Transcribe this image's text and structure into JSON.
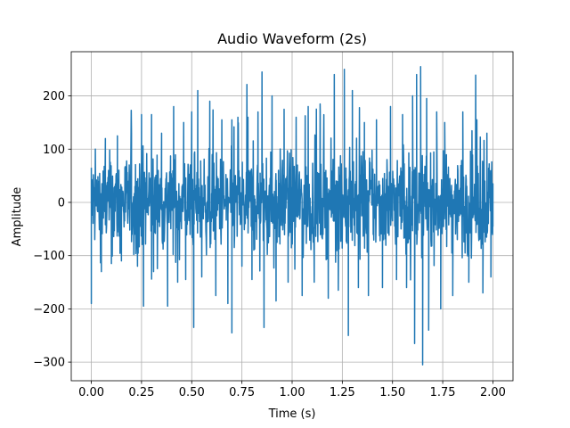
{
  "chart_data": {
    "type": "line",
    "title": "Audio Waveform (2s)",
    "xlabel": "Time (s)",
    "ylabel": "Amplitude",
    "xlim": [
      -0.1,
      2.1
    ],
    "ylim": [
      -335,
      283
    ],
    "xticks": [
      0.0,
      0.25,
      0.5,
      0.75,
      1.0,
      1.25,
      1.5,
      1.75,
      2.0
    ],
    "xtick_labels": [
      "0.00",
      "0.25",
      "0.50",
      "0.75",
      "1.00",
      "1.25",
      "1.50",
      "1.75",
      "2.00"
    ],
    "yticks": [
      -300,
      -200,
      -100,
      0,
      100,
      200
    ],
    "ytick_labels": [
      "−300",
      "−200",
      "−100",
      "0",
      "100",
      "200"
    ],
    "grid": true,
    "series": [
      {
        "color": "#1f77b4",
        "x_start": 0.0,
        "x_end": 2.0,
        "typical_envelope": [
          -60,
          60
        ],
        "peaks": [
          {
            "x": 0.0,
            "y": 65
          },
          {
            "x": 0.0,
            "y": -190
          },
          {
            "x": 0.02,
            "y": 100
          },
          {
            "x": 0.05,
            "y": -130
          },
          {
            "x": 0.07,
            "y": 120
          },
          {
            "x": 0.1,
            "y": -115
          },
          {
            "x": 0.13,
            "y": 125
          },
          {
            "x": 0.15,
            "y": -110
          },
          {
            "x": 0.2,
            "y": 130
          },
          {
            "x": 0.23,
            "y": -120
          },
          {
            "x": 0.25,
            "y": 165
          },
          {
            "x": 0.26,
            "y": -195
          },
          {
            "x": 0.3,
            "y": 165
          },
          {
            "x": 0.31,
            "y": -130
          },
          {
            "x": 0.35,
            "y": 130
          },
          {
            "x": 0.38,
            "y": -195
          },
          {
            "x": 0.41,
            "y": 180
          },
          {
            "x": 0.43,
            "y": -150
          },
          {
            "x": 0.46,
            "y": 150
          },
          {
            "x": 0.47,
            "y": -145
          },
          {
            "x": 0.5,
            "y": 170
          },
          {
            "x": 0.51,
            "y": -235
          },
          {
            "x": 0.53,
            "y": 210
          },
          {
            "x": 0.55,
            "y": -140
          },
          {
            "x": 0.59,
            "y": 190
          },
          {
            "x": 0.62,
            "y": -175
          },
          {
            "x": 0.65,
            "y": 155
          },
          {
            "x": 0.68,
            "y": -190
          },
          {
            "x": 0.7,
            "y": 155
          },
          {
            "x": 0.7,
            "y": -245
          },
          {
            "x": 0.73,
            "y": 160
          },
          {
            "x": 0.75,
            "y": -120
          },
          {
            "x": 0.78,
            "y": 160
          },
          {
            "x": 0.8,
            "y": -145
          },
          {
            "x": 0.83,
            "y": 170
          },
          {
            "x": 0.85,
            "y": 245
          },
          {
            "x": 0.86,
            "y": -235
          },
          {
            "x": 0.9,
            "y": 200
          },
          {
            "x": 0.92,
            "y": -185
          },
          {
            "x": 0.96,
            "y": 175
          },
          {
            "x": 0.98,
            "y": -150
          },
          {
            "x": 1.02,
            "y": 160
          },
          {
            "x": 1.05,
            "y": -175
          },
          {
            "x": 1.08,
            "y": 180
          },
          {
            "x": 1.11,
            "y": -150
          },
          {
            "x": 1.14,
            "y": 170
          },
          {
            "x": 1.18,
            "y": -180
          },
          {
            "x": 1.21,
            "y": 240
          },
          {
            "x": 1.23,
            "y": -165
          },
          {
            "x": 1.26,
            "y": 250
          },
          {
            "x": 1.28,
            "y": -250
          },
          {
            "x": 1.3,
            "y": 210
          },
          {
            "x": 1.33,
            "y": -160
          },
          {
            "x": 1.36,
            "y": 150
          },
          {
            "x": 1.38,
            "y": -175
          },
          {
            "x": 1.42,
            "y": 155
          },
          {
            "x": 1.45,
            "y": -160
          },
          {
            "x": 1.49,
            "y": 180
          },
          {
            "x": 1.52,
            "y": -145
          },
          {
            "x": 1.55,
            "y": 165
          },
          {
            "x": 1.57,
            "y": -160
          },
          {
            "x": 1.6,
            "y": 200
          },
          {
            "x": 1.61,
            "y": -265
          },
          {
            "x": 1.62,
            "y": 240
          },
          {
            "x": 1.64,
            "y": 255
          },
          {
            "x": 1.65,
            "y": -305
          },
          {
            "x": 1.67,
            "y": 195
          },
          {
            "x": 1.68,
            "y": -240
          },
          {
            "x": 1.72,
            "y": 170
          },
          {
            "x": 1.74,
            "y": -200
          },
          {
            "x": 1.76,
            "y": 150
          },
          {
            "x": 1.8,
            "y": -175
          },
          {
            "x": 1.85,
            "y": 170
          },
          {
            "x": 1.88,
            "y": -150
          },
          {
            "x": 1.92,
            "y": 155
          },
          {
            "x": 1.95,
            "y": -170
          },
          {
            "x": 1.97,
            "y": 130
          },
          {
            "x": 1.99,
            "y": -140
          },
          {
            "x": 2.0,
            "y": 35
          },
          {
            "x": 2.0,
            "y": -45
          }
        ]
      }
    ]
  }
}
